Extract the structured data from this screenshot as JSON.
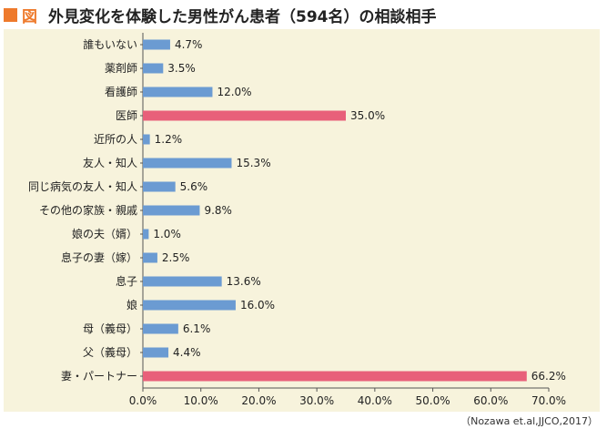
{
  "header": {
    "fig_label": "図",
    "title": "外見変化を体験した男性がん患者（594名）の相談相手"
  },
  "source": "（Nozawa et.al,JJCO,2017）",
  "colors": {
    "title_accent": "#ee7a2c",
    "panel_background": "#f7f3dc",
    "bar_default": "#6b9bd2",
    "bar_highlight": "#e8607a"
  },
  "chart_data": {
    "type": "bar",
    "orientation": "horizontal",
    "title": "外見変化を体験した男性がん患者（594名）の相談相手",
    "xlim": [
      0,
      70
    ],
    "x_ticks": [
      "0.0%",
      "10.0%",
      "20.0%",
      "30.0%",
      "40.0%",
      "50.0%",
      "60.0%",
      "70.0%"
    ],
    "grid": false,
    "categories": [
      "誰もいない",
      "薬剤師",
      "看護師",
      "医師",
      "近所の人",
      "友人・知人",
      "同じ病気の友人・知人",
      "その他の家族・親戚",
      "娘の夫（婿）",
      "息子の妻（嫁）",
      "息子",
      "娘",
      "母（義母）",
      "父（義母）",
      "妻・パートナー"
    ],
    "values": [
      4.7,
      3.5,
      12.0,
      35.0,
      1.2,
      15.3,
      5.6,
      9.8,
      1.0,
      2.5,
      13.6,
      16.0,
      6.1,
      4.4,
      66.2
    ],
    "value_labels": [
      "4.7%",
      "3.5%",
      "12.0%",
      "35.0%",
      "1.2%",
      "15.3%",
      "5.6%",
      "9.8%",
      "1.0%",
      "2.5%",
      "13.6%",
      "16.0%",
      "6.1%",
      "4.4%",
      "66.2%"
    ],
    "highlighted_categories": [
      "医師",
      "妻・パートナー"
    ]
  }
}
